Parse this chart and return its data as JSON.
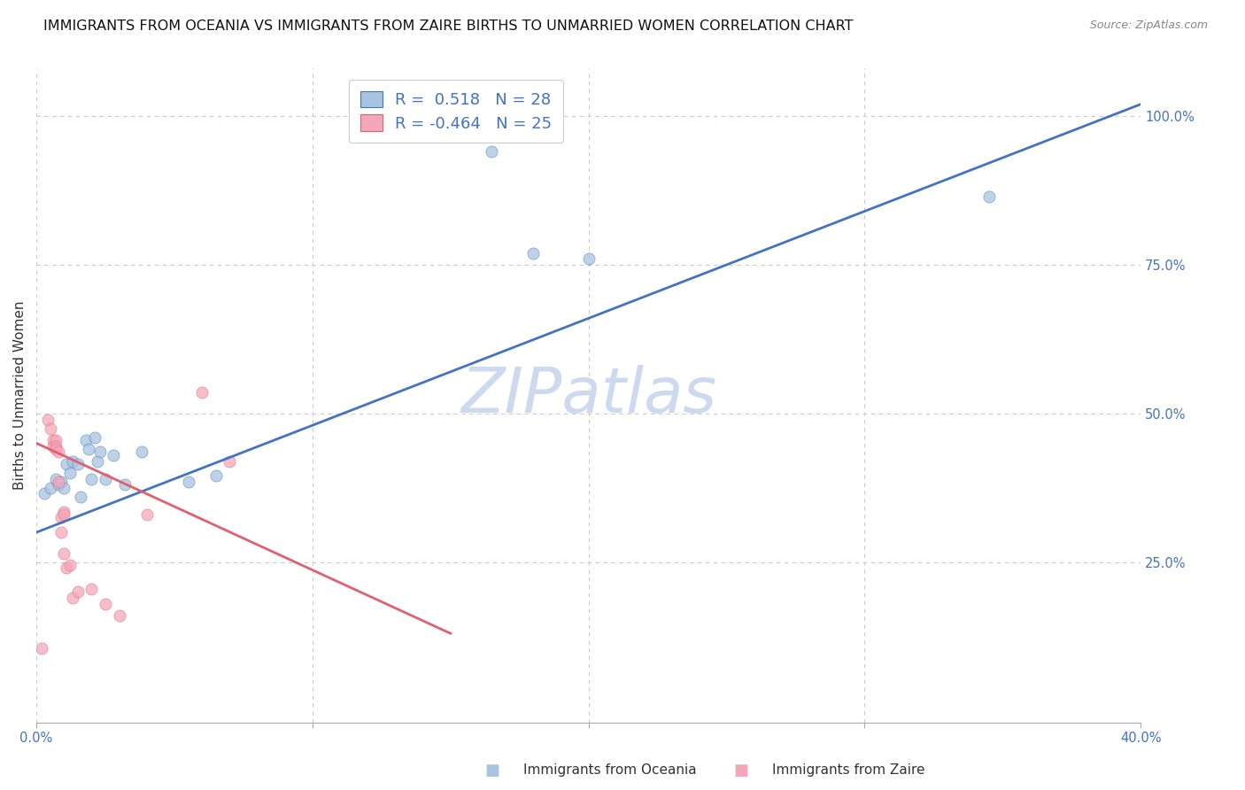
{
  "title": "IMMIGRANTS FROM OCEANIA VS IMMIGRANTS FROM ZAIRE BIRTHS TO UNMARRIED WOMEN CORRELATION CHART",
  "source": "Source: ZipAtlas.com",
  "ylabel": "Births to Unmarried Women",
  "xlabel_blue": "Immigrants from Oceania",
  "xlabel_pink": "Immigrants from Zaire",
  "watermark": "ZIPatlas",
  "legend_blue_R": "0.518",
  "legend_blue_N": "28",
  "legend_pink_R": "-0.464",
  "legend_pink_N": "25",
  "blue_color": "#a8c4e0",
  "pink_color": "#f4a7b9",
  "line_blue_color": "#4472c4",
  "line_pink_color": "#e06070",
  "axis_label_color": "#4472c4",
  "xlim": [
    0.0,
    0.4
  ],
  "ylim": [
    -0.02,
    1.08
  ],
  "xtick_values": [
    0.0,
    0.1,
    0.2,
    0.3,
    0.4
  ],
  "xtick_labels_ends": [
    "0.0%",
    "40.0%"
  ],
  "ytick_values": [
    0.25,
    0.5,
    0.75,
    1.0
  ],
  "ytick_labels": [
    "25.0%",
    "50.0%",
    "75.0%",
    "100.0%"
  ],
  "blue_points_x": [
    0.003,
    0.005,
    0.007,
    0.008,
    0.009,
    0.01,
    0.011,
    0.012,
    0.013,
    0.015,
    0.016,
    0.018,
    0.019,
    0.02,
    0.021,
    0.022,
    0.023,
    0.025,
    0.028,
    0.032,
    0.038,
    0.055,
    0.065,
    0.155,
    0.165,
    0.18,
    0.2,
    0.345
  ],
  "blue_points_y": [
    0.365,
    0.375,
    0.39,
    0.38,
    0.385,
    0.375,
    0.415,
    0.4,
    0.42,
    0.415,
    0.36,
    0.455,
    0.44,
    0.39,
    0.46,
    0.42,
    0.435,
    0.39,
    0.43,
    0.38,
    0.435,
    0.385,
    0.395,
    0.97,
    0.94,
    0.77,
    0.76,
    0.865
  ],
  "pink_points_x": [
    0.002,
    0.004,
    0.005,
    0.006,
    0.006,
    0.007,
    0.007,
    0.007,
    0.008,
    0.008,
    0.009,
    0.009,
    0.01,
    0.01,
    0.01,
    0.011,
    0.012,
    0.013,
    0.015,
    0.02,
    0.025,
    0.03,
    0.04,
    0.06,
    0.07
  ],
  "pink_points_y": [
    0.105,
    0.49,
    0.475,
    0.455,
    0.445,
    0.455,
    0.445,
    0.44,
    0.435,
    0.385,
    0.325,
    0.3,
    0.335,
    0.33,
    0.265,
    0.24,
    0.245,
    0.19,
    0.2,
    0.205,
    0.18,
    0.16,
    0.33,
    0.535,
    0.42
  ],
  "blue_line_x": [
    0.0,
    0.4
  ],
  "blue_line_y": [
    0.3,
    1.02
  ],
  "pink_line_x": [
    0.0,
    0.15
  ],
  "pink_line_y": [
    0.45,
    0.13
  ],
  "background_color": "#ffffff",
  "grid_color": "#cccccc",
  "title_fontsize": 11.5,
  "axis_fontsize": 11,
  "tick_fontsize": 10.5,
  "legend_fontsize": 13,
  "watermark_fontsize": 52,
  "watermark_color": "#ccd9ee",
  "marker_size": 90,
  "marker_alpha": 0.75
}
